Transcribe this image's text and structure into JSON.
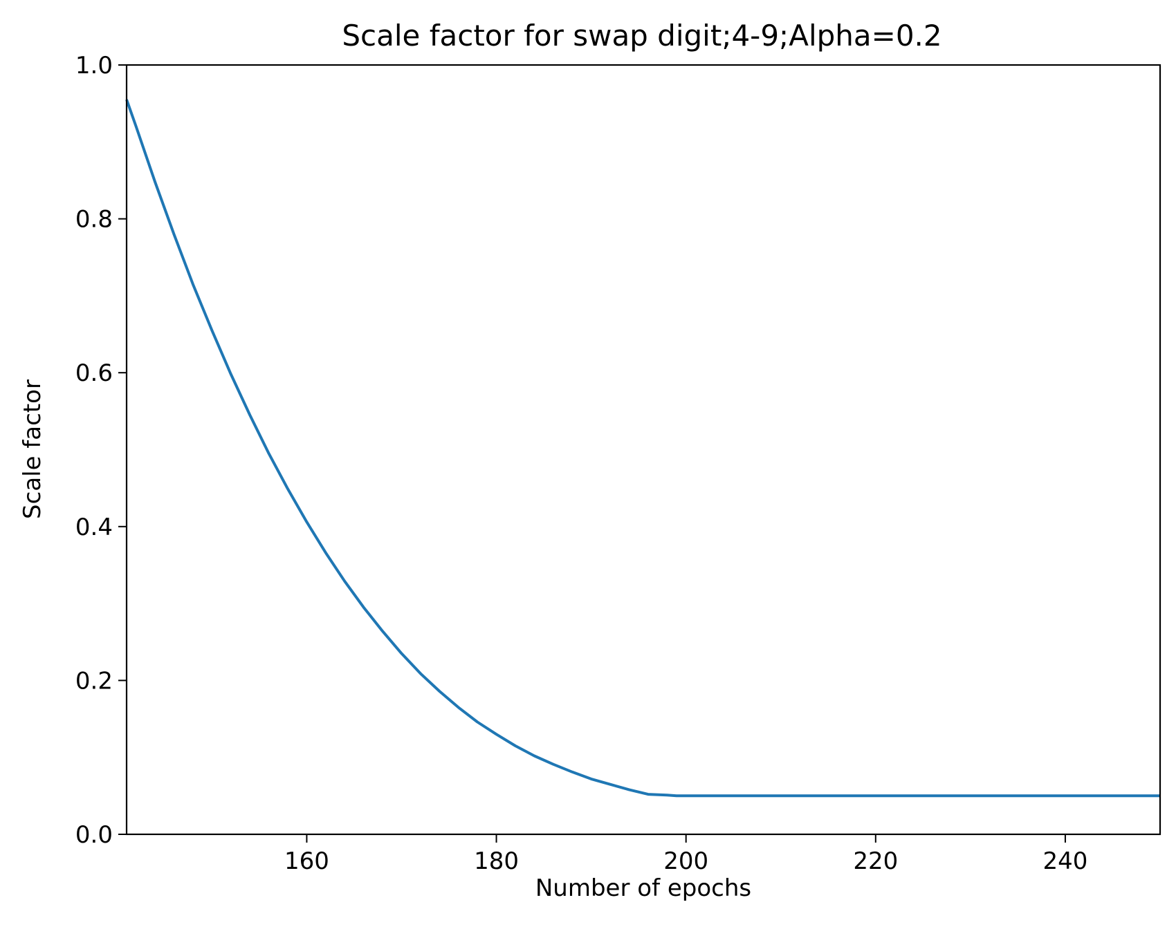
{
  "chart_data": {
    "type": "line",
    "title": "Scale factor for swap digit;4-9;Alpha=0.2",
    "xlabel": "Number of epochs",
    "ylabel": "Scale factor",
    "xlim": [
      141,
      250
    ],
    "ylim": [
      0.0,
      1.0
    ],
    "xticks": [
      160,
      180,
      200,
      220,
      240
    ],
    "yticks": [
      0.0,
      0.2,
      0.4,
      0.6,
      0.8,
      1.0
    ],
    "ytick_labels": [
      "0.0",
      "0.2",
      "0.4",
      "0.6",
      "0.8",
      "1.0"
    ],
    "grid": false,
    "line_color": "#1f77b4",
    "series": [
      {
        "x": [
          141,
          142,
          144,
          146,
          148,
          150,
          152,
          154,
          156,
          158,
          160,
          162,
          164,
          166,
          168,
          170,
          172,
          174,
          176,
          178,
          180,
          182,
          184,
          186,
          188,
          190,
          192,
          194,
          196,
          198,
          199,
          200,
          210,
          220,
          230,
          240,
          250
        ],
        "y": [
          0.955,
          0.92,
          0.848,
          0.78,
          0.715,
          0.655,
          0.598,
          0.545,
          0.495,
          0.449,
          0.406,
          0.366,
          0.329,
          0.295,
          0.264,
          0.235,
          0.209,
          0.186,
          0.165,
          0.146,
          0.13,
          0.115,
          0.102,
          0.091,
          0.081,
          0.072,
          0.065,
          0.058,
          0.052,
          0.051,
          0.05,
          0.05,
          0.05,
          0.05,
          0.05,
          0.05,
          0.05
        ]
      }
    ]
  }
}
